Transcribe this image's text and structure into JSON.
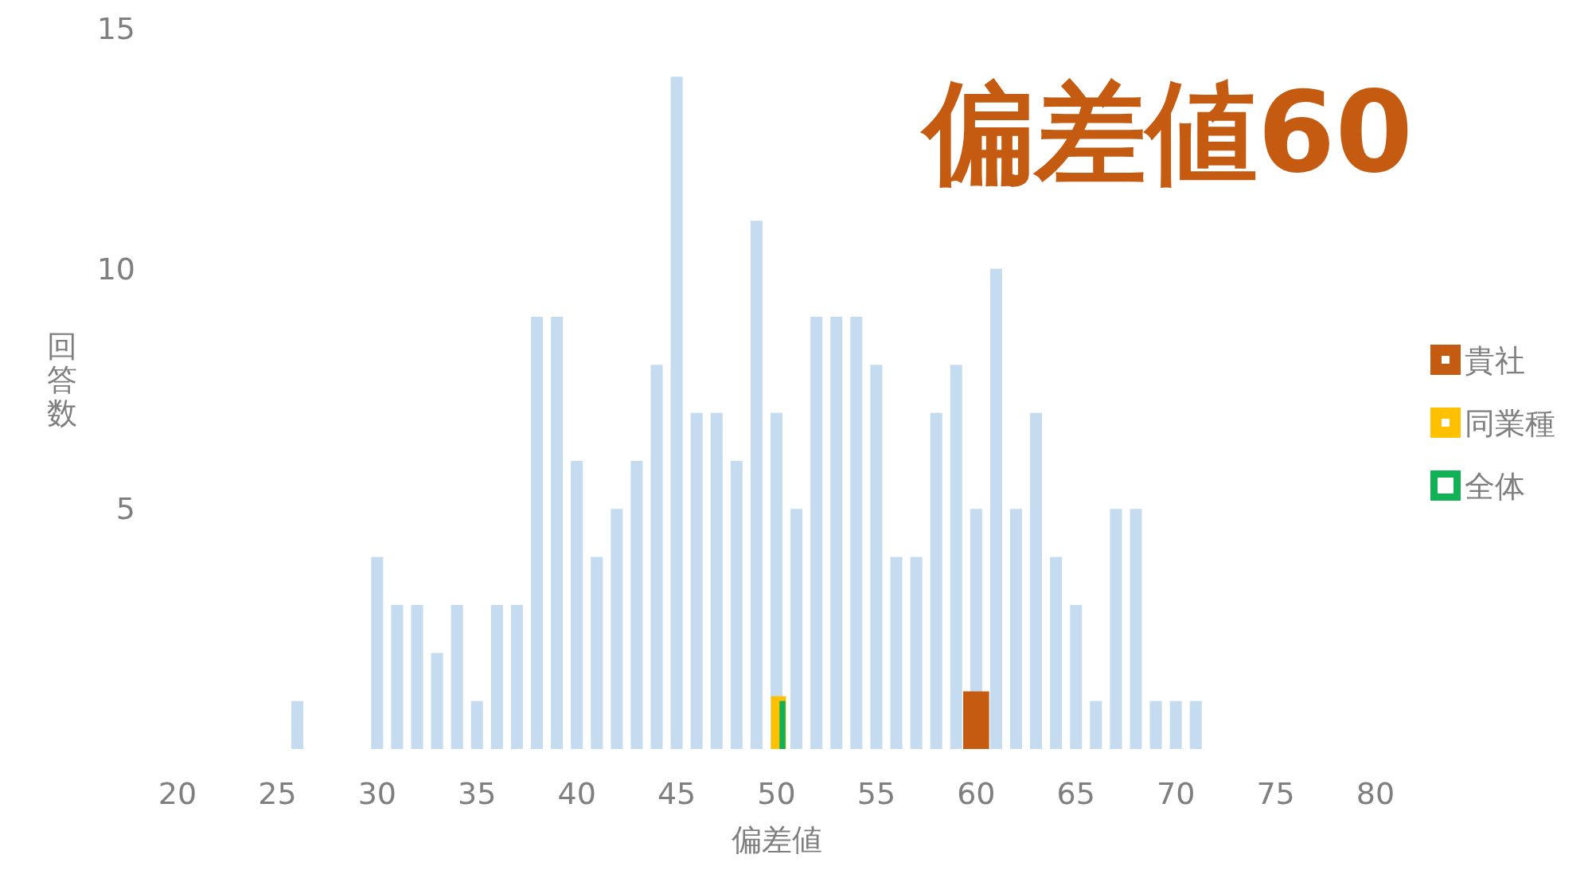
{
  "chart_data": {
    "type": "bar",
    "title": "偏差値60",
    "xlabel": "偏差値",
    "ylabel": "回答数",
    "xlim": [
      20,
      80
    ],
    "xticks": [
      20,
      25,
      30,
      35,
      40,
      45,
      50,
      55,
      60,
      65,
      70,
      75,
      80
    ],
    "ylim": [
      0,
      15
    ],
    "yticks": [
      5,
      10,
      15
    ],
    "grid": false,
    "legend": "right",
    "series": [
      {
        "color": "#c5dbf0",
        "x": [
          26,
          30,
          31,
          32,
          33,
          34,
          35,
          36,
          37,
          38,
          39,
          40,
          41,
          42,
          43,
          44,
          45,
          46,
          47,
          48,
          49,
          50,
          51,
          52,
          53,
          54,
          55,
          56,
          57,
          58,
          59,
          60,
          61,
          62,
          63,
          64,
          65,
          66,
          67,
          68,
          69,
          70,
          71
        ],
        "values": [
          1,
          4,
          3,
          3,
          2,
          3,
          1,
          3,
          3,
          9,
          9,
          6,
          4,
          5,
          6,
          8,
          14,
          7,
          7,
          6,
          11,
          7,
          5,
          9,
          9,
          9,
          8,
          4,
          4,
          7,
          8,
          5,
          10,
          5,
          7,
          4,
          3,
          1,
          5,
          5,
          1,
          1,
          1
        ]
      },
      {
        "name": "貴社",
        "color": "#c55a11",
        "x": [
          60
        ],
        "values": [
          1.2
        ]
      },
      {
        "name": "同業種",
        "color": "#ffc000",
        "x": [
          50.1
        ],
        "values": [
          1.1
        ]
      },
      {
        "name": "全体",
        "color": "#13b156",
        "x": [
          50.3
        ],
        "values": [
          1.0
        ]
      }
    ]
  }
}
